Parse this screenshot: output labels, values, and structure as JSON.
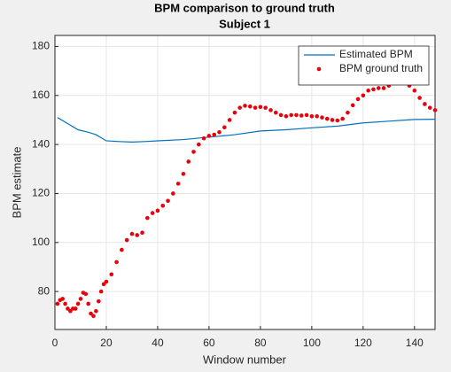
{
  "chart_data": {
    "type": "line",
    "title": [
      "BPM comparison to ground truth",
      "Subject 1"
    ],
    "xlabel": "Window number",
    "ylabel": "BPM estimate",
    "xlim": [
      0,
      148
    ],
    "xticks": [
      0,
      20,
      40,
      60,
      80,
      100,
      120,
      140
    ],
    "ylim": [
      64.5,
      184.5
    ],
    "yticks": [
      80,
      100,
      120,
      140,
      160,
      180
    ],
    "grid": true,
    "legend": "upper right",
    "series": [
      {
        "name": "Estimated BPM",
        "color": "#0072bd",
        "mode": "line",
        "x": [
          1,
          5,
          9,
          13,
          16,
          20,
          25,
          30,
          35,
          40,
          50,
          60,
          70,
          80,
          90,
          100,
          110,
          120,
          130,
          140,
          148
        ],
        "values": [
          151,
          148.5,
          146,
          145,
          144,
          141.5,
          141.2,
          141,
          141.2,
          141.5,
          142,
          143,
          144,
          145.5,
          146,
          146.8,
          147.5,
          148.8,
          149.5,
          150.2,
          150.3
        ]
      },
      {
        "name": "BPM ground truth",
        "color": "#e8000b",
        "mode": "markers",
        "x": [
          1,
          2,
          3,
          4,
          5,
          6,
          7,
          8,
          9,
          10,
          11,
          12,
          13,
          14,
          15,
          16,
          17,
          18,
          19,
          20,
          22,
          24,
          26,
          28,
          30,
          32,
          34,
          36,
          38,
          40,
          42,
          44,
          46,
          48,
          50,
          52,
          54,
          56,
          58,
          60,
          62,
          64,
          66,
          68,
          70,
          72,
          74,
          76,
          78,
          80,
          82,
          84,
          86,
          88,
          90,
          92,
          94,
          96,
          98,
          100,
          102,
          104,
          106,
          108,
          110,
          112,
          114,
          116,
          118,
          120,
          122,
          124,
          126,
          128,
          130,
          132,
          134,
          136,
          138,
          140,
          142,
          144,
          146,
          148
        ],
        "values": [
          75,
          76.5,
          77,
          75,
          73,
          72,
          73,
          73,
          75,
          77,
          79.5,
          79,
          75,
          71,
          70,
          72,
          76,
          80,
          83,
          84,
          87,
          92,
          97,
          101,
          103.5,
          103,
          104,
          110,
          112,
          113,
          115,
          117,
          120,
          124,
          128,
          133,
          137,
          140,
          142.5,
          143.5,
          144,
          145,
          147,
          150,
          153,
          155,
          155.8,
          155.5,
          155,
          155.3,
          155,
          154,
          153,
          152,
          151.5,
          152,
          152,
          151.8,
          152,
          151.5,
          151.5,
          151,
          150.5,
          150,
          149.8,
          150.5,
          153,
          156,
          158.5,
          160,
          162,
          162.5,
          163,
          163,
          164,
          165,
          166,
          165.5,
          164,
          162,
          159,
          156.5,
          155,
          154
        ]
      }
    ]
  }
}
